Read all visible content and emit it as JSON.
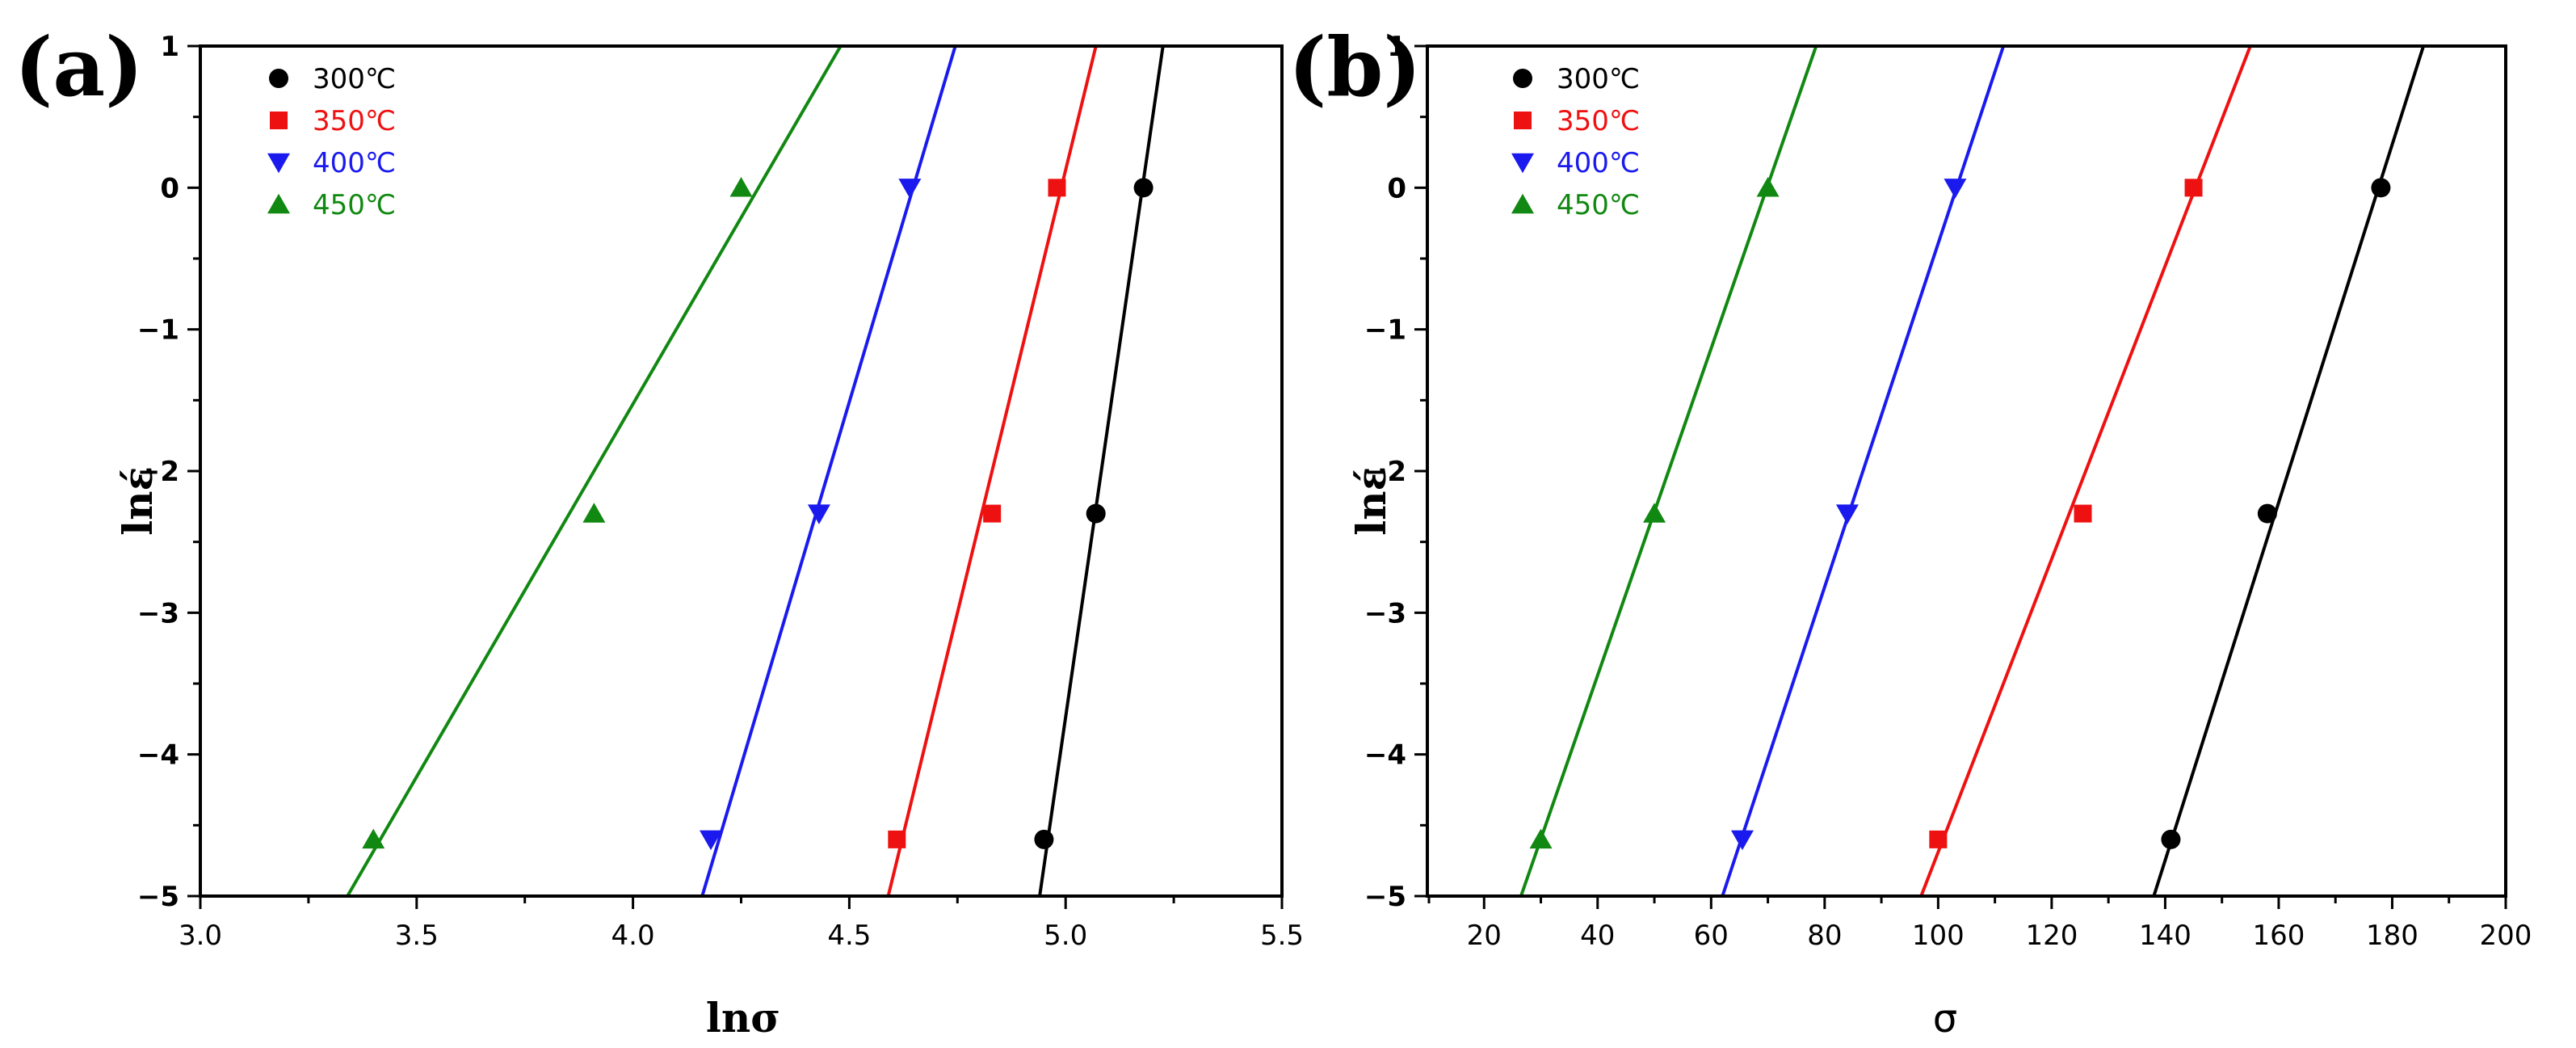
{
  "chart_data": [
    {
      "panel": "(a)",
      "type": "scatter",
      "xlabel": "lnσ",
      "ylabel": "lnέ",
      "xlim": [
        3.0,
        5.5
      ],
      "ylim": [
        -5,
        1
      ],
      "xticks": [
        "3.0",
        "3.5",
        "4.0",
        "4.5",
        "5.0",
        "5.5"
      ],
      "yticks": [
        "−5",
        "−4",
        "−3",
        "−2",
        "−1",
        "0",
        "1"
      ],
      "legend_position": "top-left",
      "series": [
        {
          "name": "300℃",
          "marker": "circle",
          "color": "#000000",
          "x": [
            4.95,
            5.07,
            5.18
          ],
          "y": [
            -4.6,
            -2.3,
            0.0
          ],
          "fit": {
            "x": [
              4.94,
              5.225
            ],
            "y": [
              -5,
              1
            ]
          }
        },
        {
          "name": "350℃",
          "marker": "square",
          "color": "#ee1111",
          "x": [
            4.61,
            4.83,
            4.98
          ],
          "y": [
            -4.6,
            -2.3,
            0.0
          ],
          "fit": {
            "x": [
              4.59,
              5.07
            ],
            "y": [
              -5,
              1
            ]
          }
        },
        {
          "name": "400℃",
          "marker": "triangle-down",
          "color": "#1a1aee",
          "x": [
            4.18,
            4.43,
            4.64
          ],
          "y": [
            -4.6,
            -2.3,
            0.0
          ],
          "fit": {
            "x": [
              4.16,
              4.745
            ],
            "y": [
              -5,
              1
            ]
          }
        },
        {
          "name": "450℃",
          "marker": "triangle-up",
          "color": "#118811",
          "x": [
            3.4,
            3.91,
            4.25
          ],
          "y": [
            -4.6,
            -2.3,
            0.0
          ],
          "fit": {
            "x": [
              3.34,
              4.48
            ],
            "y": [
              -5,
              1
            ]
          }
        }
      ]
    },
    {
      "panel": "(b)",
      "type": "scatter",
      "xlabel": "σ",
      "ylabel": "lnέ",
      "xlim": [
        10,
        200
      ],
      "ylim": [
        -5,
        1
      ],
      "xticks": [
        "20",
        "40",
        "60",
        "80",
        "100",
        "120",
        "140",
        "160",
        "180",
        "200"
      ],
      "yticks": [
        "−5",
        "−4",
        "−3",
        "−2",
        "−1",
        "0",
        "1"
      ],
      "legend_position": "top-left",
      "series": [
        {
          "name": "300℃",
          "marker": "circle",
          "color": "#000000",
          "x": [
            141,
            158,
            178
          ],
          "y": [
            -4.6,
            -2.3,
            0.0
          ],
          "fit": {
            "x": [
              138,
              185.5
            ],
            "y": [
              -5,
              1
            ]
          }
        },
        {
          "name": "350℃",
          "marker": "square",
          "color": "#ee1111",
          "x": [
            100,
            125.5,
            145
          ],
          "y": [
            -4.6,
            -2.3,
            0.0
          ],
          "fit": {
            "x": [
              97,
              155
            ],
            "y": [
              -5,
              1
            ]
          }
        },
        {
          "name": "400℃",
          "marker": "triangle-down",
          "color": "#1a1aee",
          "x": [
            65.5,
            84,
            103
          ],
          "y": [
            -4.6,
            -2.3,
            0.0
          ],
          "fit": {
            "x": [
              62,
              111.5
            ],
            "y": [
              -5,
              1
            ]
          }
        },
        {
          "name": "450℃",
          "marker": "triangle-up",
          "color": "#118811",
          "x": [
            30,
            50,
            70
          ],
          "y": [
            -4.6,
            -2.3,
            0.0
          ],
          "fit": {
            "x": [
              26.5,
              78.5
            ],
            "y": [
              -5,
              1
            ]
          }
        }
      ]
    }
  ]
}
